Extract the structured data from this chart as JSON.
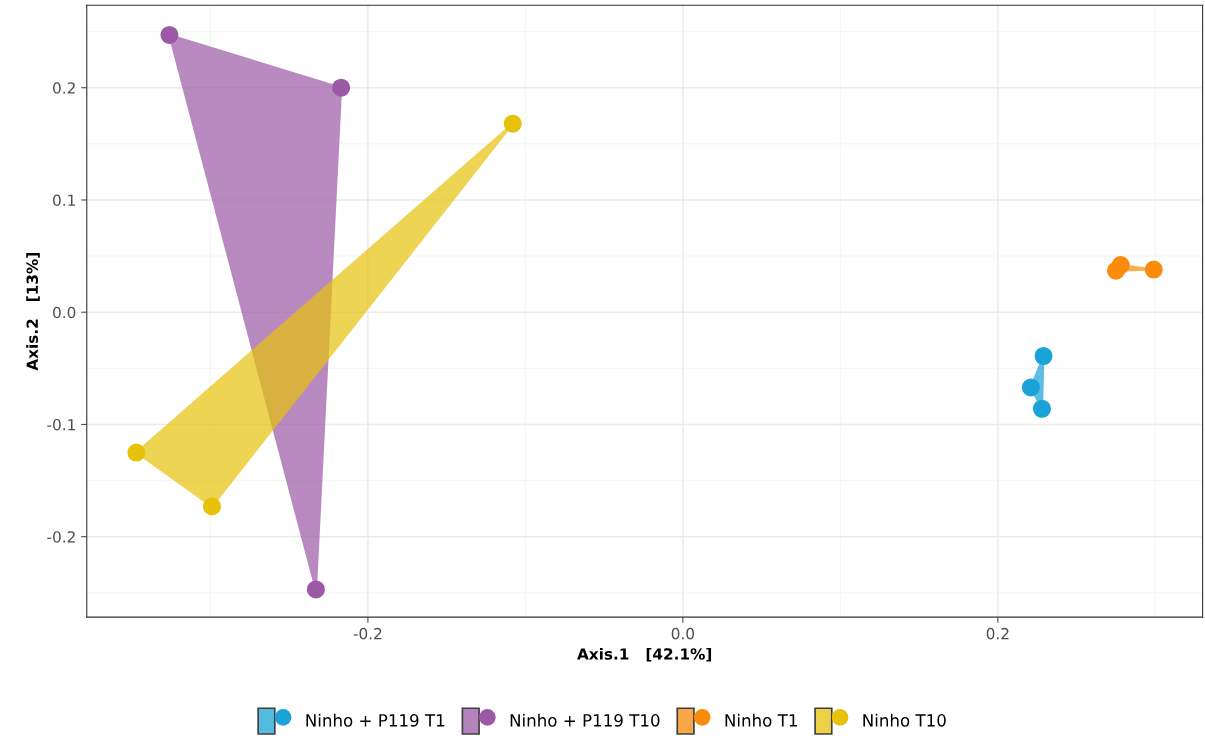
{
  "chart_data": {
    "type": "scatter",
    "xlabel": "Axis.1   [42.1%]",
    "ylabel": "Axis.2   [13%]",
    "xlim": [
      -0.3785,
      0.33
    ],
    "ylim": [
      -0.2717,
      0.2735
    ],
    "xticks": [
      {
        "value": -0.2,
        "label": "-0.2"
      },
      {
        "value": 0.0,
        "label": "0.0"
      },
      {
        "value": 0.2,
        "label": "0.2"
      }
    ],
    "yticks": [
      {
        "value": -0.2,
        "label": "-0.2"
      },
      {
        "value": -0.1,
        "label": "-0.1"
      },
      {
        "value": 0.0,
        "label": "0.0"
      },
      {
        "value": 0.1,
        "label": "0.1"
      },
      {
        "value": 0.2,
        "label": "0.2"
      }
    ],
    "grid": true,
    "legend": "bottom",
    "marker": "circle",
    "series": [
      {
        "name": "Ninho + P119 T1",
        "color": "#1aa3d6",
        "x": [
          0.229,
          0.221,
          0.228
        ],
        "values": [
          -0.039,
          -0.067,
          -0.086
        ]
      },
      {
        "name": "Ninho + P119 T10",
        "color": "#9b59a6",
        "x": [
          -0.326,
          -0.217,
          -0.233
        ],
        "values": [
          0.247,
          0.2,
          -0.247
        ]
      },
      {
        "name": "Ninho T1",
        "color": "#f98c0a",
        "x": [
          0.275,
          0.278,
          0.299
        ],
        "values": [
          0.037,
          0.042,
          0.038
        ]
      },
      {
        "name": "Ninho T10",
        "color": "#e6c20a",
        "x": [
          -0.108,
          -0.347,
          -0.299
        ],
        "values": [
          0.168,
          -0.125,
          -0.173
        ]
      }
    ]
  }
}
